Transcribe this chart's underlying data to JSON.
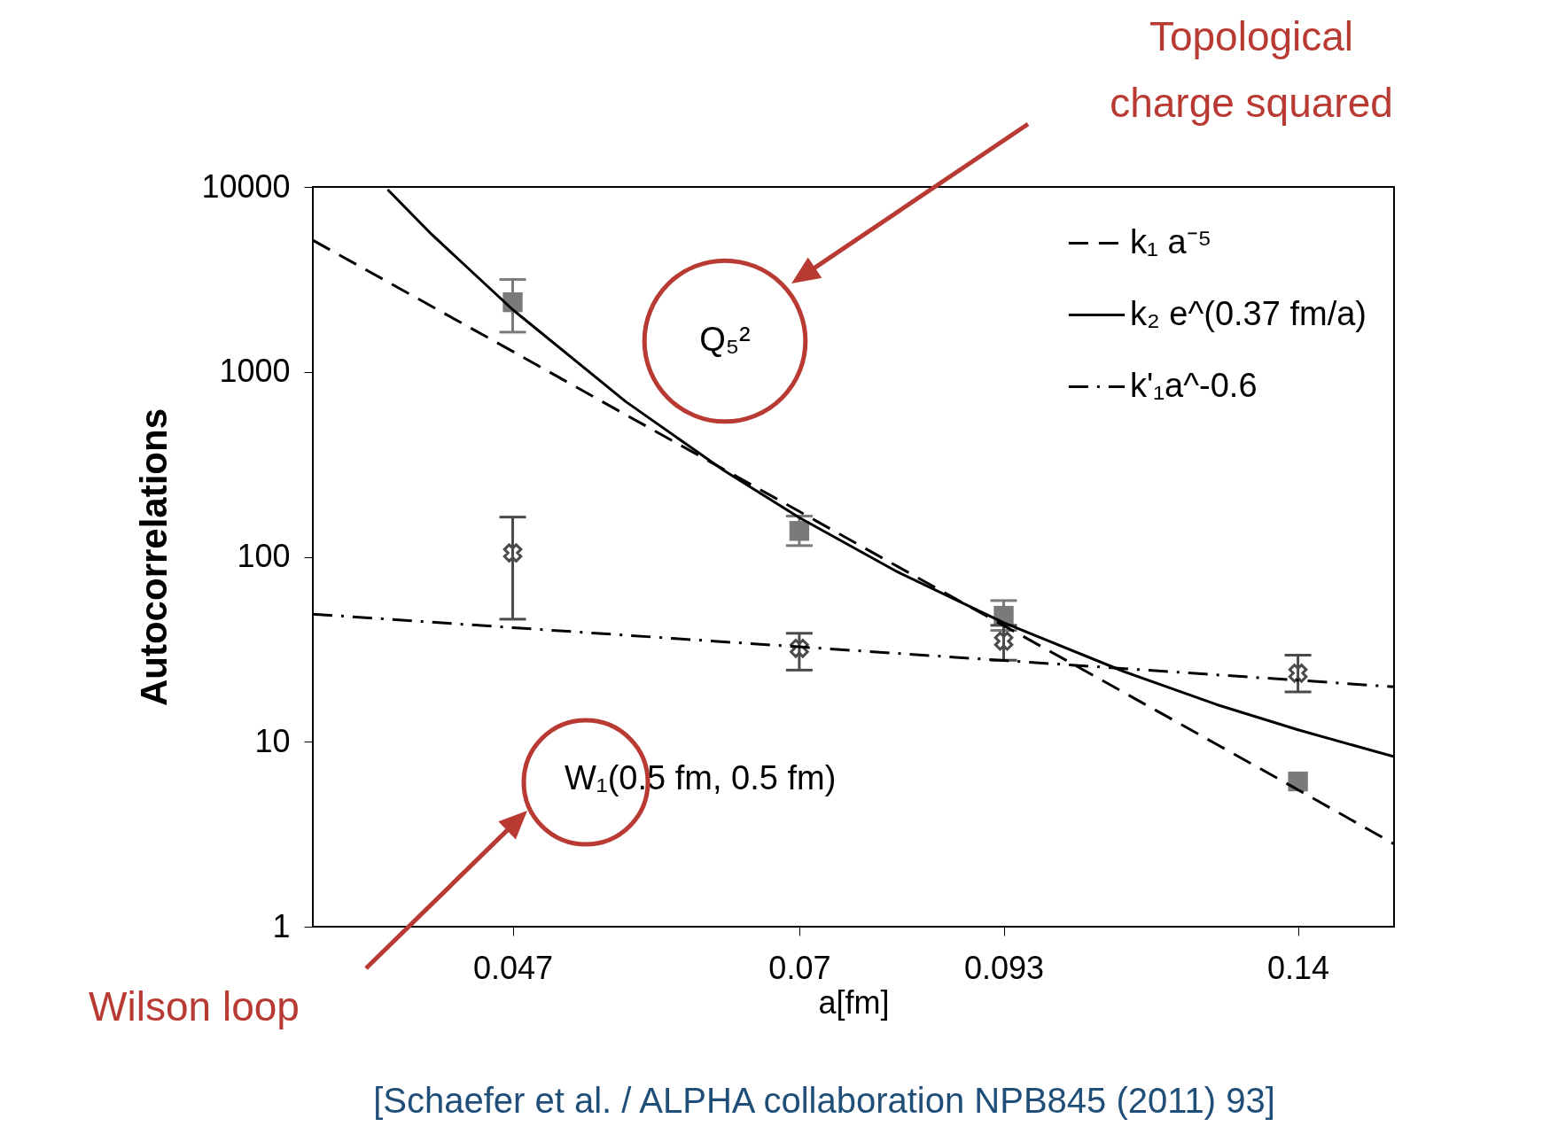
{
  "chart_data": {
    "type": "scatter",
    "xlabel": "a[fm]",
    "ylabel": "Autocorrelations",
    "log": "xy",
    "grid": false,
    "legend": "top right",
    "xlim": [
      0.0356,
      0.16
    ],
    "xticks": [
      0.047,
      0.07,
      0.093,
      0.14
    ],
    "ylim": [
      1,
      10000
    ],
    "yticks": [
      1,
      10,
      100,
      1000,
      10000
    ],
    "series": [
      {
        "marker": "square",
        "color": "#7a7a7a",
        "x": [
          0.047,
          0.07,
          0.093,
          0.14
        ],
        "values": [
          2380,
          138,
          48,
          6.1
        ],
        "errors": [
          [
            1640,
            3160
          ],
          [
            115,
            166
          ],
          [
            40,
            58
          ],
          null
        ]
      },
      {
        "marker": "cross",
        "color": "#4a4a4a",
        "x": [
          0.047,
          0.07,
          0.093,
          0.14
        ],
        "values": [
          105,
          32,
          35,
          23.5
        ],
        "errors": [
          [
            46,
            164
          ],
          [
            24.4,
            38.6
          ],
          [
            27.6,
            42.6
          ],
          [
            18.6,
            29.4
          ]
        ]
      },
      {
        "type": "line",
        "name": "k₁ a⁻⁵",
        "color": "#000000",
        "line_style": "dashed",
        "x": [
          0.0356,
          0.047,
          0.055,
          0.07,
          0.08,
          0.093,
          0.11,
          0.125,
          0.14,
          0.16
        ],
        "values": [
          5150,
          1290,
          586,
          176,
          90,
          42.5,
          18.4,
          9.7,
          5.5,
          2.8
        ]
      },
      {
        "type": "line",
        "name": "k₂ e^(0.37 fm/a)",
        "color": "#000000",
        "line_style": "solid",
        "x": [
          0.0395,
          0.042,
          0.047,
          0.055,
          0.063,
          0.07,
          0.08,
          0.093,
          0.11,
          0.125,
          0.14,
          0.16
        ],
        "values": [
          9670,
          5530,
          2170,
          690,
          294,
          163,
          84,
          44,
          23.9,
          15.9,
          11.6,
          8.3
        ]
      },
      {
        "type": "line",
        "name": "k'₁a^-0.6",
        "color": "#000000",
        "line_style": "dashdot",
        "x": [
          0.0356,
          0.047,
          0.07,
          0.093,
          0.14,
          0.16
        ],
        "values": [
          49,
          41.4,
          32.6,
          27.5,
          21.5,
          19.8
        ]
      }
    ],
    "annotations": [
      "Q₅²",
      "W₁(0.5 fm, 0.5 fm)",
      "Topological",
      "charge squared",
      "Wilson loop",
      "[Schaefer et al. / ALPHA collaboration NPB845 (2011) 93]"
    ]
  }
}
